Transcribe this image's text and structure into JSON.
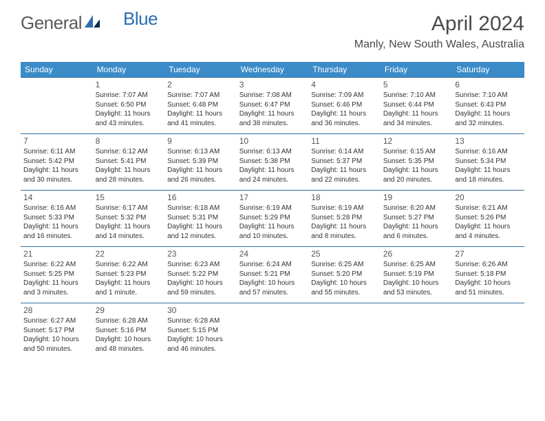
{
  "brand": {
    "text1": "General",
    "text2": "Blue"
  },
  "title": "April 2024",
  "location": "Manly, New South Wales, Australia",
  "colors": {
    "header_bg": "#3b8bc9",
    "header_fg": "#ffffff",
    "row_border": "#2f6ea0",
    "text": "#333333",
    "title_color": "#4a4a4a",
    "logo_gray": "#5a5a5a",
    "logo_blue": "#2a6fb0"
  },
  "days_of_week": [
    "Sunday",
    "Monday",
    "Tuesday",
    "Wednesday",
    "Thursday",
    "Friday",
    "Saturday"
  ],
  "weeks": [
    [
      null,
      {
        "n": "1",
        "sr": "Sunrise: 7:07 AM",
        "ss": "Sunset: 6:50 PM",
        "dl": "Daylight: 11 hours and 43 minutes."
      },
      {
        "n": "2",
        "sr": "Sunrise: 7:07 AM",
        "ss": "Sunset: 6:48 PM",
        "dl": "Daylight: 11 hours and 41 minutes."
      },
      {
        "n": "3",
        "sr": "Sunrise: 7:08 AM",
        "ss": "Sunset: 6:47 PM",
        "dl": "Daylight: 11 hours and 38 minutes."
      },
      {
        "n": "4",
        "sr": "Sunrise: 7:09 AM",
        "ss": "Sunset: 6:46 PM",
        "dl": "Daylight: 11 hours and 36 minutes."
      },
      {
        "n": "5",
        "sr": "Sunrise: 7:10 AM",
        "ss": "Sunset: 6:44 PM",
        "dl": "Daylight: 11 hours and 34 minutes."
      },
      {
        "n": "6",
        "sr": "Sunrise: 7:10 AM",
        "ss": "Sunset: 6:43 PM",
        "dl": "Daylight: 11 hours and 32 minutes."
      }
    ],
    [
      {
        "n": "7",
        "sr": "Sunrise: 6:11 AM",
        "ss": "Sunset: 5:42 PM",
        "dl": "Daylight: 11 hours and 30 minutes."
      },
      {
        "n": "8",
        "sr": "Sunrise: 6:12 AM",
        "ss": "Sunset: 5:41 PM",
        "dl": "Daylight: 11 hours and 28 minutes."
      },
      {
        "n": "9",
        "sr": "Sunrise: 6:13 AM",
        "ss": "Sunset: 5:39 PM",
        "dl": "Daylight: 11 hours and 26 minutes."
      },
      {
        "n": "10",
        "sr": "Sunrise: 6:13 AM",
        "ss": "Sunset: 5:38 PM",
        "dl": "Daylight: 11 hours and 24 minutes."
      },
      {
        "n": "11",
        "sr": "Sunrise: 6:14 AM",
        "ss": "Sunset: 5:37 PM",
        "dl": "Daylight: 11 hours and 22 minutes."
      },
      {
        "n": "12",
        "sr": "Sunrise: 6:15 AM",
        "ss": "Sunset: 5:35 PM",
        "dl": "Daylight: 11 hours and 20 minutes."
      },
      {
        "n": "13",
        "sr": "Sunrise: 6:16 AM",
        "ss": "Sunset: 5:34 PM",
        "dl": "Daylight: 11 hours and 18 minutes."
      }
    ],
    [
      {
        "n": "14",
        "sr": "Sunrise: 6:16 AM",
        "ss": "Sunset: 5:33 PM",
        "dl": "Daylight: 11 hours and 16 minutes."
      },
      {
        "n": "15",
        "sr": "Sunrise: 6:17 AM",
        "ss": "Sunset: 5:32 PM",
        "dl": "Daylight: 11 hours and 14 minutes."
      },
      {
        "n": "16",
        "sr": "Sunrise: 6:18 AM",
        "ss": "Sunset: 5:31 PM",
        "dl": "Daylight: 11 hours and 12 minutes."
      },
      {
        "n": "17",
        "sr": "Sunrise: 6:19 AM",
        "ss": "Sunset: 5:29 PM",
        "dl": "Daylight: 11 hours and 10 minutes."
      },
      {
        "n": "18",
        "sr": "Sunrise: 6:19 AM",
        "ss": "Sunset: 5:28 PM",
        "dl": "Daylight: 11 hours and 8 minutes."
      },
      {
        "n": "19",
        "sr": "Sunrise: 6:20 AM",
        "ss": "Sunset: 5:27 PM",
        "dl": "Daylight: 11 hours and 6 minutes."
      },
      {
        "n": "20",
        "sr": "Sunrise: 6:21 AM",
        "ss": "Sunset: 5:26 PM",
        "dl": "Daylight: 11 hours and 4 minutes."
      }
    ],
    [
      {
        "n": "21",
        "sr": "Sunrise: 6:22 AM",
        "ss": "Sunset: 5:25 PM",
        "dl": "Daylight: 11 hours and 3 minutes."
      },
      {
        "n": "22",
        "sr": "Sunrise: 6:22 AM",
        "ss": "Sunset: 5:23 PM",
        "dl": "Daylight: 11 hours and 1 minute."
      },
      {
        "n": "23",
        "sr": "Sunrise: 6:23 AM",
        "ss": "Sunset: 5:22 PM",
        "dl": "Daylight: 10 hours and 59 minutes."
      },
      {
        "n": "24",
        "sr": "Sunrise: 6:24 AM",
        "ss": "Sunset: 5:21 PM",
        "dl": "Daylight: 10 hours and 57 minutes."
      },
      {
        "n": "25",
        "sr": "Sunrise: 6:25 AM",
        "ss": "Sunset: 5:20 PM",
        "dl": "Daylight: 10 hours and 55 minutes."
      },
      {
        "n": "26",
        "sr": "Sunrise: 6:25 AM",
        "ss": "Sunset: 5:19 PM",
        "dl": "Daylight: 10 hours and 53 minutes."
      },
      {
        "n": "27",
        "sr": "Sunrise: 6:26 AM",
        "ss": "Sunset: 5:18 PM",
        "dl": "Daylight: 10 hours and 51 minutes."
      }
    ],
    [
      {
        "n": "28",
        "sr": "Sunrise: 6:27 AM",
        "ss": "Sunset: 5:17 PM",
        "dl": "Daylight: 10 hours and 50 minutes."
      },
      {
        "n": "29",
        "sr": "Sunrise: 6:28 AM",
        "ss": "Sunset: 5:16 PM",
        "dl": "Daylight: 10 hours and 48 minutes."
      },
      {
        "n": "30",
        "sr": "Sunrise: 6:28 AM",
        "ss": "Sunset: 5:15 PM",
        "dl": "Daylight: 10 hours and 46 minutes."
      },
      null,
      null,
      null,
      null
    ]
  ]
}
